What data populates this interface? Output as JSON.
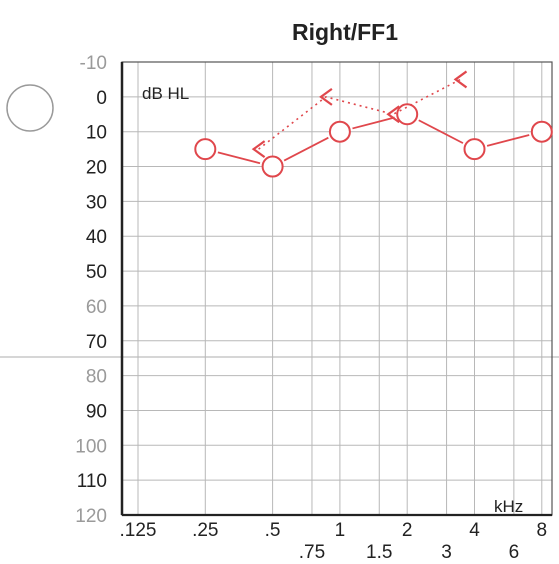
{
  "chart_data": {
    "type": "line",
    "title": "Right/FF1",
    "ylabel": "dB HL",
    "xlabel": "kHz",
    "y_ticks": [
      "-10",
      "0",
      "10",
      "20",
      "30",
      "40",
      "50",
      "60",
      "70",
      "80",
      "90",
      "100",
      "110",
      "120"
    ],
    "y_faint_ticks": [
      "-10",
      "60",
      "80",
      "100",
      "120"
    ],
    "ylim": [
      -10,
      120
    ],
    "y_inverted": true,
    "x_scale": "log",
    "x_ticks_primary": [
      ".125",
      ".25",
      ".5",
      "1",
      "2",
      "4",
      "8"
    ],
    "x_ticks_secondary": [
      ".75",
      "1.5",
      "3",
      "6"
    ],
    "grid": true,
    "series": [
      {
        "marker": "circle",
        "connected": "solid",
        "color": "#e0474c",
        "x": [
          0.25,
          0.5,
          1,
          2,
          4,
          8
        ],
        "y": [
          15,
          20,
          10,
          5,
          15,
          10
        ]
      },
      {
        "marker": "less-than",
        "connected": "dotted",
        "color": "#e0474c",
        "x": [
          0.5,
          1,
          2,
          4
        ],
        "y": [
          15,
          0,
          5,
          -5
        ]
      }
    ],
    "symbol_legend": "circle-outline"
  }
}
